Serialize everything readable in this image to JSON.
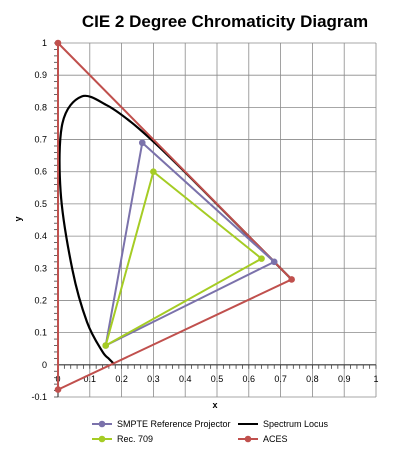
{
  "chart_data": {
    "type": "line",
    "title": "CIE 2 Degree Chromaticity Diagram",
    "xlabel": "x",
    "ylabel": "y",
    "xlim": [
      0,
      1
    ],
    "ylim": [
      -0.1,
      1
    ],
    "x_ticks": [
      "0",
      "0.1",
      "0.2",
      "0.3",
      "0.4",
      "0.5",
      "0.6",
      "0.7",
      "0.8",
      "0.9",
      "1"
    ],
    "y_ticks": [
      "-0.1",
      "0",
      "0.1",
      "0.2",
      "0.3",
      "0.4",
      "0.5",
      "0.6",
      "0.7",
      "0.8",
      "0.9",
      "1"
    ],
    "grid": true,
    "legend_position": "bottom",
    "series": [
      {
        "name": "SMPTE Reference Projector",
        "color": "#7b72ab",
        "marker": "circle",
        "points": [
          [
            0.68,
            0.32
          ],
          [
            0.265,
            0.69
          ],
          [
            0.15,
            0.06
          ],
          [
            0.68,
            0.32
          ]
        ]
      },
      {
        "name": "Spectrum Locus",
        "color": "#000000",
        "marker": "none",
        "smooth": true,
        "points": [
          [
            0.1741,
            0.005
          ],
          [
            0.16,
            0.019
          ],
          [
            0.1389,
            0.0424
          ],
          [
            0.0913,
            0.1327
          ],
          [
            0.0454,
            0.295
          ],
          [
            0.0082,
            0.5384
          ],
          [
            0.0139,
            0.7502
          ],
          [
            0.0743,
            0.8338
          ],
          [
            0.1547,
            0.8059
          ],
          [
            0.2296,
            0.7543
          ],
          [
            0.3016,
            0.6923
          ],
          [
            0.3731,
            0.6245
          ],
          [
            0.4441,
            0.5547
          ],
          [
            0.5125,
            0.4866
          ],
          [
            0.5752,
            0.4242
          ],
          [
            0.627,
            0.3725
          ],
          [
            0.6658,
            0.334
          ],
          [
            0.6915,
            0.3083
          ],
          [
            0.7347,
            0.2653
          ]
        ]
      },
      {
        "name": "Rec. 709",
        "color": "#a5cc24",
        "marker": "circle",
        "points": [
          [
            0.64,
            0.33
          ],
          [
            0.3,
            0.6
          ],
          [
            0.15,
            0.06
          ],
          [
            0.64,
            0.33
          ]
        ]
      },
      {
        "name": "ACES",
        "color": "#c0504d",
        "marker": "circle",
        "points": [
          [
            0.7347,
            0.2653
          ],
          [
            0.0,
            1.0
          ],
          [
            0.0001,
            -0.077
          ],
          [
            0.7347,
            0.2653
          ]
        ]
      }
    ]
  }
}
